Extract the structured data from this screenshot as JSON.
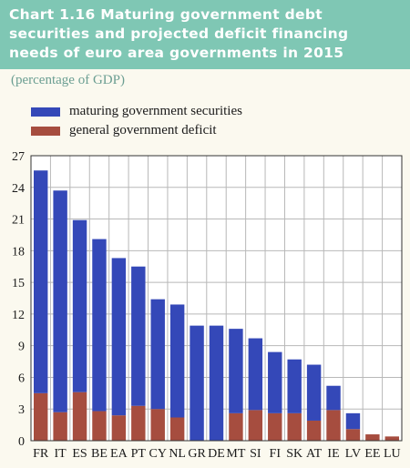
{
  "header": {
    "title_line1": "Chart 1.16 Maturing government debt",
    "title_line2": "securities and projected deficit financing",
    "title_line3": "needs of euro area governments in 2015",
    "subtitle": "(percentage of GDP)"
  },
  "colors": {
    "header_bg": "#7fc7b4",
    "maturing": "#3448b8",
    "deficit": "#a64d3f"
  },
  "chart_data": {
    "type": "bar",
    "stacked": true,
    "title": "Chart 1.16 Maturing government debt securities and projected deficit financing needs of euro area governments in 2015",
    "subtitle": "(percentage of GDP)",
    "categories": [
      "FR",
      "IT",
      "ES",
      "BE",
      "EA",
      "PT",
      "CY",
      "NL",
      "GR",
      "DE",
      "MT",
      "SI",
      "FI",
      "SK",
      "AT",
      "IE",
      "LV",
      "EE",
      "LU"
    ],
    "series": [
      {
        "name": "general government deficit",
        "color": "#a64d3f",
        "values": [
          4.5,
          2.7,
          4.6,
          2.8,
          2.4,
          3.3,
          3.0,
          2.2,
          0.0,
          0.0,
          2.6,
          2.9,
          2.6,
          2.6,
          1.9,
          2.9,
          1.1,
          0.6,
          0.4
        ]
      },
      {
        "name": "maturing government securities",
        "color": "#3448b8",
        "values": [
          21.1,
          21.0,
          16.3,
          16.3,
          14.9,
          13.2,
          10.4,
          10.7,
          10.9,
          10.9,
          8.0,
          6.8,
          5.8,
          5.1,
          5.3,
          2.3,
          1.5,
          0.0,
          0.0
        ]
      }
    ],
    "legend": [
      "maturing government securities",
      "general government deficit"
    ],
    "legend_position": "top-left",
    "yticks": [
      0,
      3,
      6,
      9,
      12,
      15,
      18,
      21,
      24,
      27
    ],
    "ylim": [
      0,
      27
    ],
    "grid": true
  }
}
